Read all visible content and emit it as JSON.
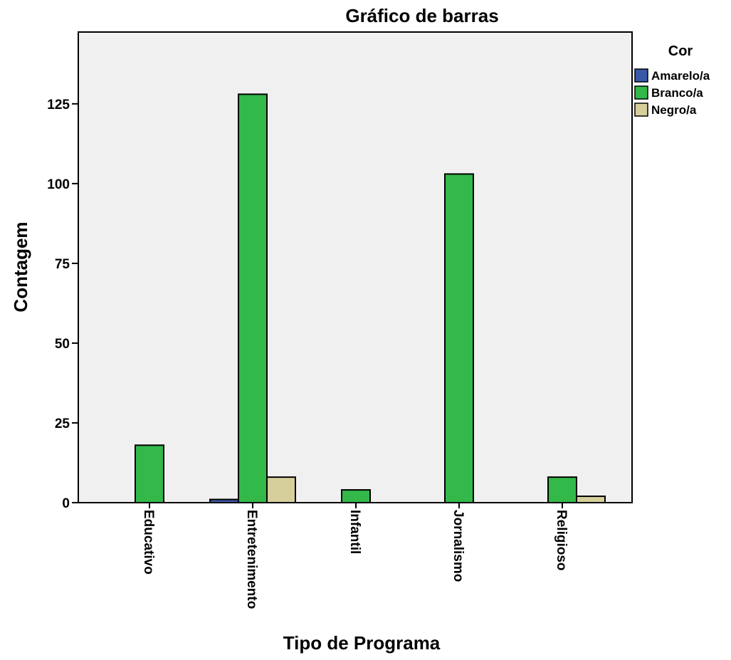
{
  "chart_data": {
    "type": "bar",
    "title": "Gráfico de barras",
    "x_label": "Tipo de Programa",
    "y_label": "Contagem",
    "categories": [
      "Educativo",
      "Entretenimento",
      "Infantil",
      "Jornalismo",
      "Religioso"
    ],
    "series": [
      {
        "name": "Amarelo/a",
        "color": "#3a58a8",
        "values": [
          null,
          1,
          null,
          null,
          null
        ]
      },
      {
        "name": "Branco/a",
        "color": "#33b84a",
        "values": [
          18,
          128,
          4,
          103,
          8
        ]
      },
      {
        "name": "Negro/a",
        "color": "#d6cf9b",
        "values": [
          null,
          8,
          null,
          null,
          2
        ]
      }
    ],
    "legend_title": "Cor",
    "legend_position": "right",
    "ylim": [
      0,
      147.5
    ],
    "yticks": [
      0,
      25,
      50,
      75,
      100,
      125
    ],
    "grid": false
  }
}
